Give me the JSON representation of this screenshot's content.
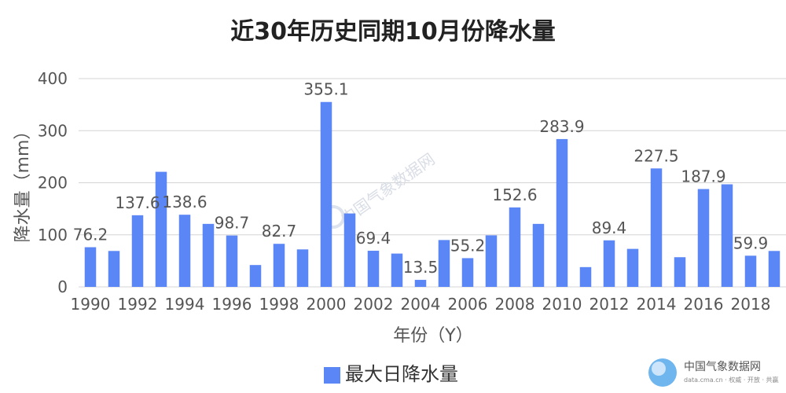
{
  "chart_data": {
    "type": "bar",
    "title": "近30年历史同期10月份降水量",
    "xlabel": "年份（Y）",
    "ylabel": "降水量（mm）",
    "ylim": [
      0,
      400
    ],
    "yticks": [
      0,
      100,
      200,
      300,
      400
    ],
    "grid": true,
    "legend_position": "bottom",
    "categories": [
      "1990",
      "1991",
      "1992",
      "1993",
      "1994",
      "1995",
      "1996",
      "1997",
      "1998",
      "1999",
      "2000",
      "2001",
      "2002",
      "2003",
      "2004",
      "2005",
      "2006",
      "2007",
      "2008",
      "2009",
      "2010",
      "2011",
      "2012",
      "2013",
      "2014",
      "2015",
      "2016",
      "2017",
      "2018",
      "2019"
    ],
    "tick_labels": [
      "1990",
      "1992",
      "1994",
      "1996",
      "1998",
      "2000",
      "2002",
      "2004",
      "2006",
      "2008",
      "2010",
      "2012",
      "2014",
      "2016",
      "2018"
    ],
    "series": [
      {
        "name": "最大日降水量",
        "color": "#5b86f5",
        "values": [
          76.2,
          69,
          137.6,
          221,
          138.6,
          121,
          98.7,
          42,
          82.7,
          72,
          355.1,
          141,
          69.4,
          64,
          13.5,
          90,
          55.2,
          99,
          152.6,
          121,
          283.9,
          38,
          89.4,
          73,
          227.5,
          57,
          187.9,
          197,
          59.9,
          69
        ]
      }
    ],
    "data_labels": {
      "1990": "76.2",
      "1992": "137.6",
      "1994": "138.6",
      "1996": "98.7",
      "1998": "82.7",
      "2000": "355.1",
      "2002": "69.4",
      "2004": "13.5",
      "2006": "55.2",
      "2008": "152.6",
      "2010": "283.9",
      "2012": "89.4",
      "2014": "227.5",
      "2016": "187.9",
      "2018": "59.9"
    }
  },
  "watermark": {
    "text": "中国气象数据网"
  },
  "logo": {
    "name": "中国气象数据网",
    "url_text": "data.cma.cn · 权威 · 开放 · 共赢",
    "icon": "cma-logo-icon"
  }
}
